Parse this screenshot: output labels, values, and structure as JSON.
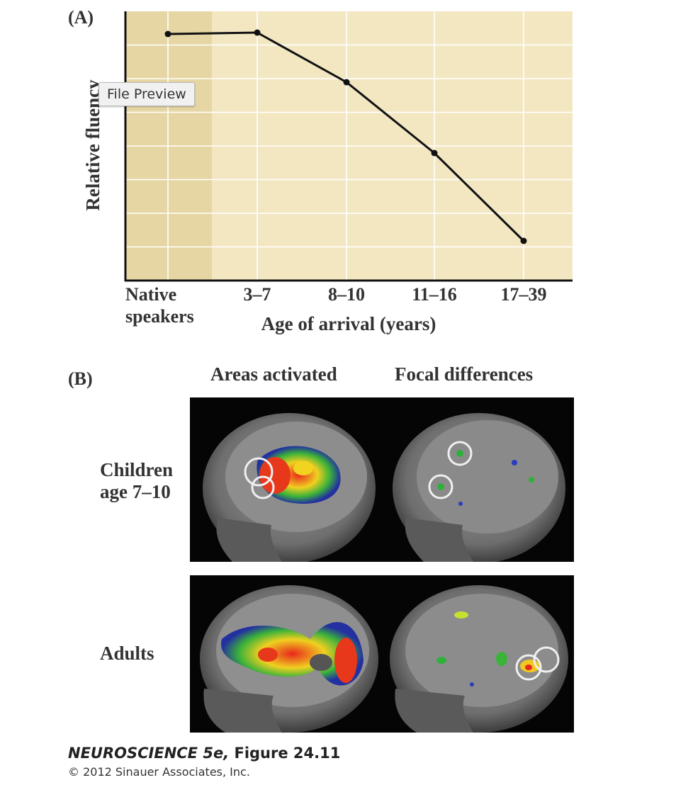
{
  "tooltip": {
    "text": "File Preview"
  },
  "panel_a": {
    "label": "(A)"
  },
  "panel_b": {
    "label": "(B)",
    "col_headers": [
      "Areas activated",
      "Focal differences"
    ],
    "row_labels": [
      {
        "line1": "Children",
        "line2": "age 7–10"
      },
      {
        "line1": "Adults",
        "line2": ""
      }
    ]
  },
  "chart_data": {
    "type": "line",
    "title": "",
    "xlabel": "Age of arrival (years)",
    "ylabel": "Relative fluency",
    "categories": [
      "Native speakers",
      "3–7",
      "8–10",
      "11–16",
      "17–39"
    ],
    "category_lines": [
      [
        "Native",
        "speakers"
      ],
      [
        "3–7"
      ],
      [
        "8–10"
      ],
      [
        "11–16"
      ],
      [
        "17–39"
      ]
    ],
    "values": [
      0.87,
      0.875,
      0.7,
      0.45,
      0.14
    ],
    "ylim": [
      0,
      0.95
    ],
    "grid": true,
    "legend": "none",
    "colors": {
      "background": "#f3e7c2",
      "shade": "#e6d6a4",
      "line": "#111111",
      "grid": "#ffffff"
    }
  },
  "footer": {
    "book": "NEUROSCIENCE 5e,",
    "figure": "Figure 24.11",
    "copyright": "© 2012 Sinauer Associates, Inc."
  }
}
